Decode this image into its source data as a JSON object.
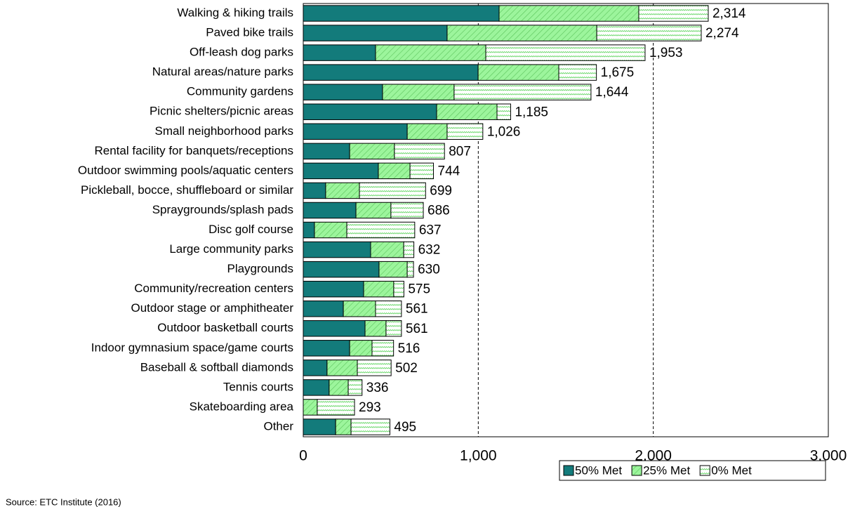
{
  "chart_data": {
    "type": "stacked_bar_horizontal",
    "categories": [
      "Walking & hiking trails",
      "Paved bike trails",
      "Off-leash dog parks",
      "Natural areas/nature parks",
      "Community gardens",
      "Picnic shelters/picnic areas",
      "Small neighborhood parks",
      "Rental facility for banquets/receptions",
      "Outdoor swimming pools/aquatic centers",
      "Pickleball, bocce, shuffleboard or similar",
      "Spraygrounds/splash pads",
      "Disc golf course",
      "Large community parks",
      "Playgrounds",
      "Community/recreation centers",
      "Outdoor stage or amphitheater",
      "Outdoor basketball courts",
      "Indoor gymnasium space/game courts",
      "Baseball & softball diamonds",
      "Tennis courts",
      "Skateboarding area",
      "Other"
    ],
    "series": [
      {
        "name": "50% Met",
        "color": "#137b7b",
        "values": [
          1119,
          822,
          413,
          999,
          453,
          762,
          594,
          265,
          429,
          128,
          301,
          64,
          385,
          433,
          345,
          229,
          353,
          265,
          136,
          148,
          0,
          185
        ]
      },
      {
        "name": "25% Met",
        "color": "#9cf59c",
        "values": [
          798,
          855,
          630,
          461,
          409,
          345,
          228,
          256,
          181,
          193,
          200,
          185,
          189,
          161,
          172,
          184,
          120,
          128,
          173,
          109,
          80,
          88
        ]
      },
      {
        "name": "0% Met",
        "color": "#ffffff",
        "values": [
          397,
          597,
          910,
          215,
          782,
          78,
          204,
          286,
          134,
          378,
          185,
          388,
          58,
          36,
          58,
          148,
          88,
          123,
          193,
          79,
          213,
          222
        ]
      }
    ],
    "totals": [
      2314,
      2274,
      1953,
      1675,
      1644,
      1185,
      1026,
      807,
      744,
      699,
      686,
      637,
      632,
      630,
      575,
      561,
      561,
      516,
      502,
      336,
      293,
      495
    ],
    "total_labels": [
      "2,314",
      "2,274",
      "1,953",
      "1,675",
      "1,644",
      "1,185",
      "1,026",
      "807",
      "744",
      "699",
      "686",
      "637",
      "632",
      "630",
      "575",
      "561",
      "561",
      "516",
      "502",
      "336",
      "293",
      "495"
    ],
    "xlim": [
      0,
      3000
    ],
    "xticks": [
      0,
      {
        "value": 1000,
        "label": "1,000"
      },
      {
        "value": 2000,
        "label": "2,000"
      },
      {
        "value": 3000,
        "label": "3,000"
      }
    ],
    "grid": true,
    "legend": "bottom-right",
    "source": "Source: ETC Institute (2016)"
  }
}
